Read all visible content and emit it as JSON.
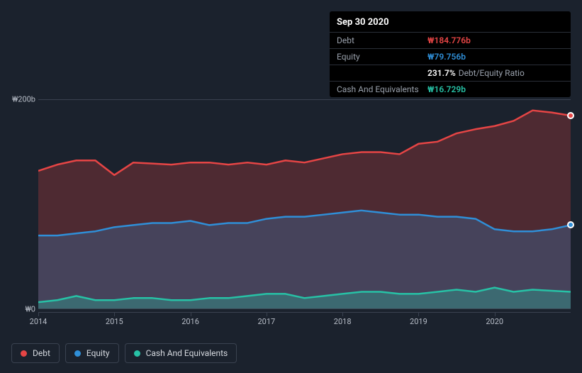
{
  "tooltip": {
    "date": "Sep 30 2020",
    "rows": [
      {
        "label": "Debt",
        "value": "₩184.776b",
        "color": "#e64545"
      },
      {
        "label": "Equity",
        "value": "₩79.756b",
        "color": "#2f8fd8"
      },
      {
        "label": "",
        "value": "231.7%",
        "sub": "Debt/Equity Ratio",
        "color": "#ffffff"
      },
      {
        "label": "Cash And Equivalents",
        "value": "₩16.729b",
        "color": "#27c2a6"
      }
    ]
  },
  "chart": {
    "type": "area",
    "background": "#1b222d",
    "grid_color": "#3a4250",
    "ylim": [
      0,
      200
    ],
    "y_ticks": [
      {
        "v": 200,
        "label": "₩200b"
      },
      {
        "v": 0,
        "label": "₩0"
      }
    ],
    "x_labels": [
      "2014",
      "2015",
      "2016",
      "2017",
      "2018",
      "2019",
      "2020"
    ],
    "x_domain": [
      0,
      28
    ],
    "series": [
      {
        "name": "Debt",
        "color": "#e64545",
        "fill": "rgba(230,69,69,0.25)",
        "line_width": 2.5,
        "values": [
          132,
          138,
          142,
          142,
          128,
          140,
          139,
          138,
          140,
          140,
          138,
          140,
          138,
          142,
          140,
          144,
          148,
          150,
          150,
          148,
          158,
          160,
          168,
          172,
          175,
          180,
          190,
          188,
          185
        ]
      },
      {
        "name": "Equity",
        "color": "#2f8fd8",
        "fill": "rgba(47,143,216,0.25)",
        "line_width": 2.5,
        "values": [
          70,
          70,
          72,
          74,
          78,
          80,
          82,
          82,
          84,
          80,
          82,
          82,
          86,
          88,
          88,
          90,
          92,
          94,
          92,
          90,
          90,
          88,
          88,
          86,
          76,
          74,
          74,
          76,
          80
        ]
      },
      {
        "name": "Cash And Equivalents",
        "color": "#27c2a6",
        "fill": "rgba(39,194,166,0.30)",
        "line_width": 2.5,
        "values": [
          6,
          8,
          12,
          8,
          8,
          10,
          10,
          8,
          8,
          10,
          10,
          12,
          14,
          14,
          10,
          12,
          14,
          16,
          16,
          14,
          14,
          16,
          18,
          16,
          20,
          16,
          18,
          17,
          16
        ]
      }
    ],
    "end_markers": [
      {
        "series": 0,
        "border": "#ffffff"
      },
      {
        "series": 1,
        "border": "#ffffff"
      }
    ]
  },
  "legend": [
    {
      "label": "Debt",
      "color": "#e64545"
    },
    {
      "label": "Equity",
      "color": "#2f8fd8"
    },
    {
      "label": "Cash And Equivalents",
      "color": "#27c2a6"
    }
  ]
}
